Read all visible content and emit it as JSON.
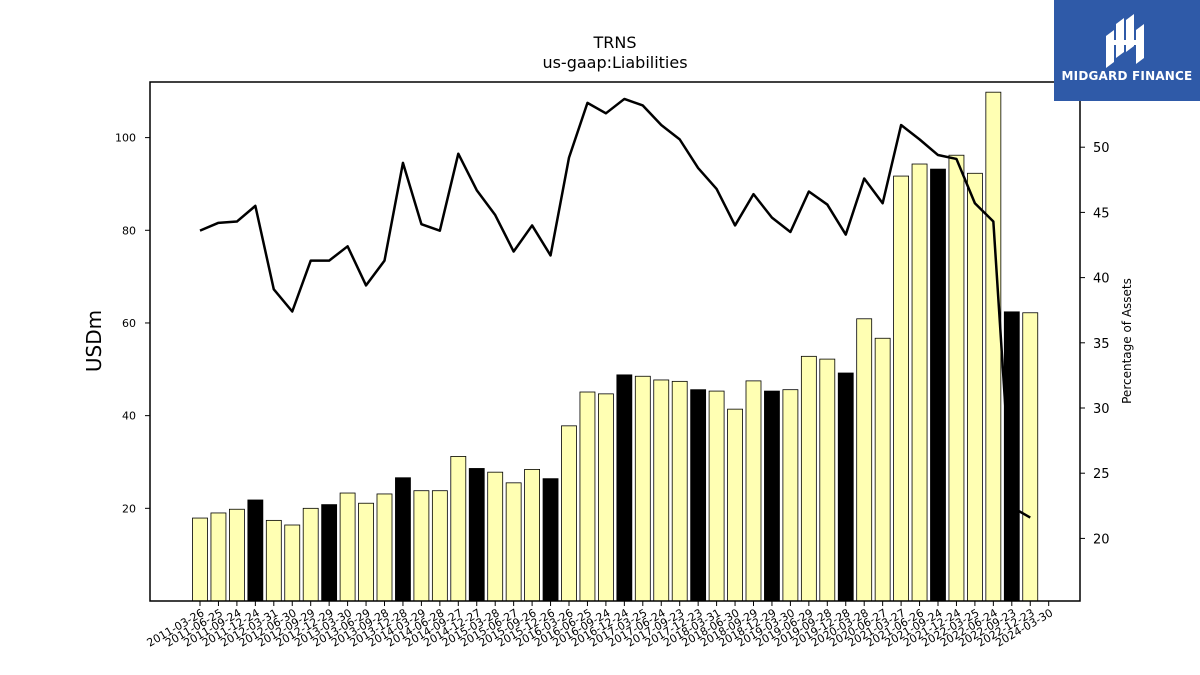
{
  "brand": {
    "name": "MIDGARD FINANCE",
    "logo_icon": "mh-monogram-icon",
    "color": "#2f5aa8"
  },
  "chart_data": {
    "type": "bar",
    "title": "TRNS",
    "subtitle": "us-gaap:Liabilities",
    "ylabel": "USDm",
    "y2label": "Percentage of Assets",
    "ylim": [
      0,
      112
    ],
    "y2lim": [
      15.2,
      55.0
    ],
    "yticks": [
      20,
      40,
      60,
      80,
      100
    ],
    "y2ticks": [
      20,
      25,
      30,
      35,
      40,
      45,
      50
    ],
    "grid": false,
    "colors": {
      "bar": "#ffffb3",
      "bar_highlight": "#000000",
      "line": "#000000"
    },
    "categories": [
      "2011-03-26",
      "2011-06-25",
      "2011-09-24",
      "2011-12-24",
      "2012-03-31",
      "2012-06-30",
      "2012-09-29",
      "2012-12-29",
      "2013-03-30",
      "2013-06-29",
      "2013-09-28",
      "2013-12-28",
      "2014-03-29",
      "2014-06-28",
      "2014-09-27",
      "2014-12-27",
      "2015-03-28",
      "2015-06-27",
      "2015-09-26",
      "2015-12-26",
      "2016-03-26",
      "2016-06-25",
      "2016-09-24",
      "2016-12-24",
      "2017-03-25",
      "2017-06-24",
      "2017-09-23",
      "2017-12-23",
      "2018-03-31",
      "2018-06-30",
      "2018-09-29",
      "2018-12-29",
      "2019-03-30",
      "2019-06-29",
      "2019-09-28",
      "2019-12-28",
      "2020-03-28",
      "2020-06-27",
      "2021-03-27",
      "2021-06-26",
      "2021-09-24",
      "2021-12-24",
      "2022-03-25",
      "2022-06-24",
      "2022-09-23",
      "2022-12-23",
      "2024-03-30"
    ],
    "series": [
      {
        "type": "bar",
        "values": [
          17.9,
          19.0,
          19.8,
          21.8,
          17.4,
          16.4,
          20.0,
          20.8,
          23.3,
          21.1,
          23.1,
          26.6,
          23.8,
          23.8,
          31.2,
          28.6,
          27.8,
          25.5,
          28.4,
          26.4,
          37.8,
          45.1,
          44.7,
          48.8,
          48.5,
          47.7,
          47.4,
          45.6,
          45.3,
          41.4,
          47.5,
          45.3,
          45.6,
          52.8,
          52.2,
          49.2,
          60.9,
          56.7,
          91.7,
          94.3,
          93.2,
          96.2,
          92.3,
          109.8,
          62.4,
          62.2,
          null
        ],
        "highlight": [
          false,
          false,
          false,
          true,
          false,
          false,
          false,
          true,
          false,
          false,
          false,
          true,
          false,
          false,
          false,
          true,
          false,
          false,
          false,
          true,
          false,
          false,
          false,
          true,
          false,
          false,
          false,
          true,
          false,
          false,
          false,
          true,
          false,
          false,
          false,
          true,
          false,
          false,
          false,
          false,
          true,
          false,
          false,
          false,
          true,
          false,
          false
        ]
      },
      {
        "type": "line",
        "axis": "right",
        "values": [
          43.6,
          44.2,
          44.3,
          45.5,
          39.1,
          37.4,
          41.3,
          41.3,
          42.4,
          39.4,
          41.3,
          48.8,
          44.1,
          43.6,
          49.5,
          46.7,
          44.8,
          42.0,
          44.0,
          41.7,
          49.2,
          53.4,
          52.6,
          53.7,
          53.2,
          51.7,
          50.6,
          48.4,
          46.8,
          44.0,
          46.4,
          44.6,
          43.5,
          46.6,
          45.6,
          43.3,
          47.6,
          45.7,
          51.7,
          50.6,
          49.4,
          49.1,
          45.7,
          44.3,
          22.4,
          21.6,
          null
        ]
      }
    ]
  }
}
